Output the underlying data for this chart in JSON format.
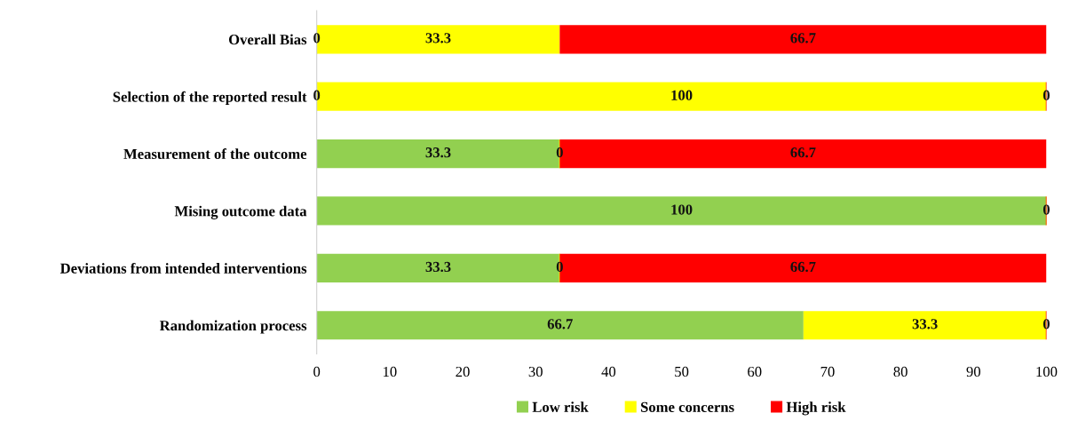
{
  "chart_data": {
    "type": "bar",
    "orientation": "horizontal",
    "stacked": true,
    "categories": [
      "Overall Bias",
      "Selection of the reported result",
      "Measurement of the outcome",
      "Mising outcome data",
      "Deviations from intended interventions",
      "Randomization process"
    ],
    "series": [
      {
        "name": "Low risk",
        "color": "#92d050",
        "values": [
          0,
          0,
          33.3,
          100,
          33.3,
          66.7
        ],
        "value_labels": [
          "0",
          "0",
          "33.3",
          "100",
          "33.3",
          "66.7"
        ]
      },
      {
        "name": "Some concerns",
        "color": "#ffff00",
        "values": [
          33.3,
          100,
          0,
          0,
          0,
          33.3
        ],
        "value_labels": [
          "33.3",
          "100",
          "0",
          null,
          "0",
          "33.3"
        ]
      },
      {
        "name": "High risk",
        "color": "#ff0000",
        "values": [
          66.7,
          0,
          66.7,
          0,
          66.7,
          0
        ],
        "value_labels": [
          "66.7",
          "0",
          "66.7",
          "0",
          "66.7",
          "0"
        ]
      }
    ],
    "xlim": [
      0,
      100
    ],
    "xticks": [
      0,
      10,
      20,
      30,
      40,
      50,
      60,
      70,
      80,
      90,
      100
    ],
    "grid": false,
    "legend": "bottom"
  }
}
